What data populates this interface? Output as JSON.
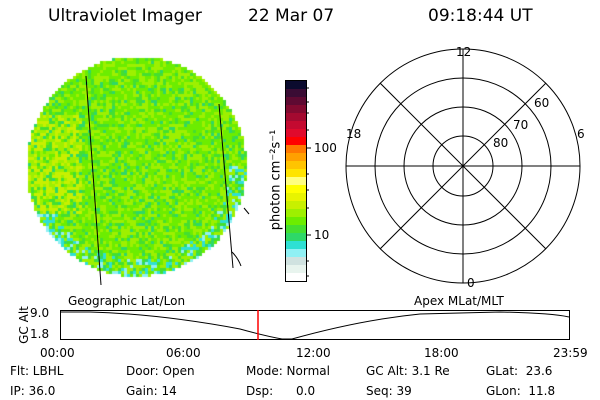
{
  "header": {
    "instrument": "Ultraviolet Imager",
    "date": "22 Mar 07",
    "time": "09:18:44 UT"
  },
  "colorbar": {
    "label": "photon cm⁻²s⁻¹",
    "ticks": [
      "100",
      "10"
    ],
    "colors": [
      "#0b0b2e",
      "#3a0c34",
      "#5e0a32",
      "#820a30",
      "#a40a30",
      "#c40a30",
      "#e00a2c",
      "#ff0000",
      "#ff7800",
      "#ffa000",
      "#ffc400",
      "#ffe400",
      "#ffff80",
      "#ffff00",
      "#e8f400",
      "#c8f000",
      "#9ef000",
      "#6ced00",
      "#44df30",
      "#2ed868",
      "#2ee0d4",
      "#90f0f4",
      "#d0e2e0",
      "#e8f4ee",
      "#ffffff"
    ]
  },
  "polar": {
    "ring_labels": [
      "80",
      "70",
      "60"
    ],
    "mlt_labels": {
      "top": "12",
      "left": "18",
      "right": "6",
      "bottom": "0"
    }
  },
  "timeline": {
    "left_label": "Geographic Lat/Lon",
    "right_label": "Apex MLat/MLT",
    "ylabel": "GC Alt",
    "y_ticks": [
      "9.0",
      "1.8"
    ],
    "x_ticks": [
      "00:00",
      "06:00",
      "12:00",
      "18:00",
      "23:59"
    ],
    "current_time_color": "#ff0000"
  },
  "status": {
    "flt": "Flt: LBHL",
    "ip": "IP: 36.0",
    "door": "Door: Open",
    "gain": "Gain: 14",
    "mode": "Mode: Normal",
    "dsp": "Dsp:      0.0",
    "gcalt": "GC Alt: 3.1 Re",
    "seq": "Seq: 39",
    "glat": "GLat:  23.6",
    "glon": "GLon:  11.8"
  }
}
